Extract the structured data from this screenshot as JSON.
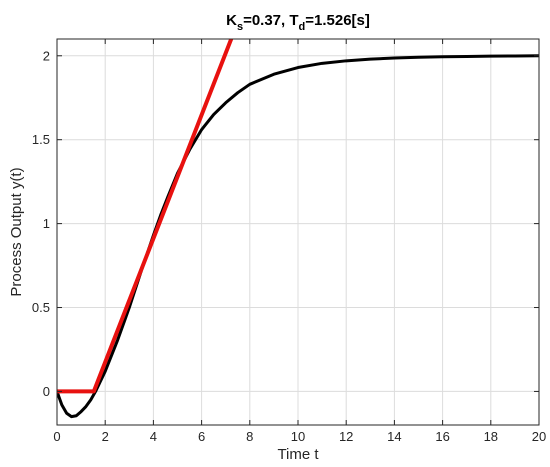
{
  "chart_data": {
    "type": "line",
    "title": {
      "k_main": "K",
      "k_sub": "s",
      "k_value": "=0.37, T",
      "t_sub": "d",
      "t_value": "=1.526[s]"
    },
    "xlabel": "Time t",
    "ylabel": "Process Output y(t)",
    "xlim": [
      0,
      20
    ],
    "ylim": [
      -0.2,
      2.1
    ],
    "x_ticks": [
      0,
      2,
      4,
      6,
      8,
      10,
      12,
      14,
      16,
      18,
      20
    ],
    "y_ticks": [
      0,
      0.5,
      1,
      1.5,
      2
    ],
    "x_tick_labels": [
      "0",
      "2",
      "4",
      "6",
      "8",
      "10",
      "12",
      "14",
      "16",
      "18",
      "20"
    ],
    "y_tick_labels": [
      "0",
      "0.5",
      "1",
      "1.5",
      "2"
    ],
    "grid": true,
    "series": [
      {
        "color": "#000000",
        "x": [
          0,
          0.2,
          0.4,
          0.6,
          0.8,
          1.0,
          1.2,
          1.4,
          1.6,
          1.8,
          2.0,
          2.5,
          3.0,
          3.5,
          4.0,
          4.3,
          4.6,
          5.0,
          5.5,
          6.0,
          6.5,
          7.0,
          7.5,
          8.0,
          8.5,
          9.0,
          10.0,
          11.0,
          12.0,
          13.0,
          14.0,
          15.0,
          16.0,
          17.0,
          18.0,
          19.0,
          20.0
        ],
        "y": [
          0,
          -0.08,
          -0.13,
          -0.15,
          -0.145,
          -0.12,
          -0.09,
          -0.05,
          0.0,
          0.06,
          0.12,
          0.3,
          0.5,
          0.72,
          0.93,
          1.05,
          1.16,
          1.3,
          1.44,
          1.56,
          1.65,
          1.72,
          1.78,
          1.83,
          1.86,
          1.89,
          1.93,
          1.955,
          1.97,
          1.98,
          1.987,
          1.991,
          1.994,
          1.996,
          1.998,
          1.999,
          2.0
        ]
      },
      {
        "color": "#e8110f",
        "x": [
          0,
          1.526,
          7.5
        ],
        "y": [
          0,
          0,
          2.2
        ]
      }
    ]
  }
}
